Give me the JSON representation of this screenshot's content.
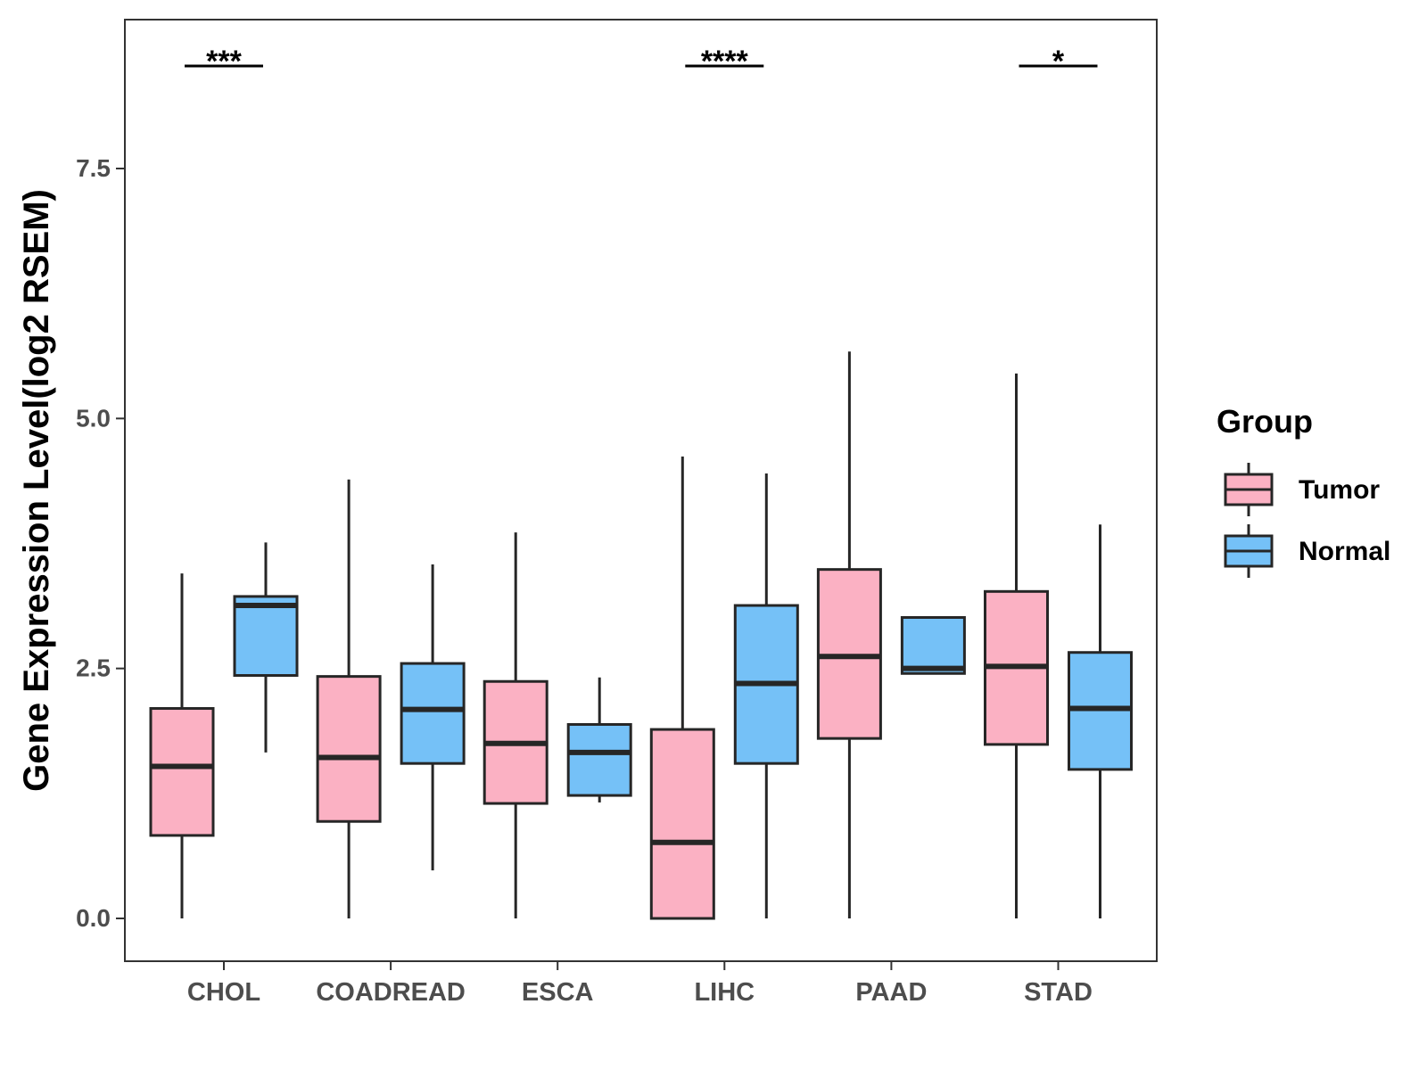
{
  "chart_data": {
    "type": "boxplot",
    "title": "",
    "xlabel": "",
    "ylabel": "Gene Expression Level(log2 RSEM)",
    "ylim": [
      -0.42,
      9.0
    ],
    "yticks": [
      0.0,
      2.5,
      5.0,
      7.5
    ],
    "ytick_labels": [
      "0.0",
      "2.5",
      "5.0",
      "7.5"
    ],
    "categories": [
      "CHOL",
      "COADREAD",
      "ESCA",
      "LIHC",
      "PAAD",
      "STAD"
    ],
    "legend": {
      "title": "Group",
      "placement": "right",
      "entries": [
        {
          "name": "Tumor",
          "color": "#FBB1C3"
        },
        {
          "name": "Normal",
          "color": "#75C1F7"
        }
      ]
    },
    "series": [
      {
        "name": "Tumor",
        "color": "#FBB1C3",
        "boxes": [
          {
            "category": "CHOL",
            "min": 0.0,
            "q1": 0.83,
            "median": 1.52,
            "q3": 2.1,
            "max": 3.45
          },
          {
            "category": "COADREAD",
            "min": 0.0,
            "q1": 0.97,
            "median": 1.61,
            "q3": 2.42,
            "max": 4.39
          },
          {
            "category": "ESCA",
            "min": 0.0,
            "q1": 1.15,
            "median": 1.75,
            "q3": 2.37,
            "max": 3.86
          },
          {
            "category": "LIHC",
            "min": 0.0,
            "q1": 0.0,
            "median": 0.76,
            "q3": 1.89,
            "max": 4.62
          },
          {
            "category": "PAAD",
            "min": 0.0,
            "q1": 1.8,
            "median": 2.62,
            "q3": 3.49,
            "max": 5.67
          },
          {
            "category": "STAD",
            "min": 0.0,
            "q1": 1.74,
            "median": 2.52,
            "q3": 3.27,
            "max": 5.45
          }
        ]
      },
      {
        "name": "Normal",
        "color": "#75C1F7",
        "boxes": [
          {
            "category": "CHOL",
            "min": 1.66,
            "q1": 2.43,
            "median": 3.13,
            "q3": 3.22,
            "max": 3.76
          },
          {
            "category": "COADREAD",
            "min": 0.48,
            "q1": 1.55,
            "median": 2.09,
            "q3": 2.55,
            "max": 3.54
          },
          {
            "category": "ESCA",
            "min": 1.16,
            "q1": 1.23,
            "median": 1.66,
            "q3": 1.94,
            "max": 2.41
          },
          {
            "category": "LIHC",
            "min": 0.0,
            "q1": 1.55,
            "median": 2.35,
            "q3": 3.13,
            "max": 4.45
          },
          {
            "category": "PAAD",
            "min": 2.45,
            "q1": 2.45,
            "median": 2.5,
            "q3": 3.01,
            "max": 3.01
          },
          {
            "category": "STAD",
            "min": 0.0,
            "q1": 1.49,
            "median": 2.1,
            "q3": 2.66,
            "max": 3.94
          }
        ]
      }
    ],
    "significance": [
      {
        "category": "CHOL",
        "label": "***"
      },
      {
        "category": "LIHC",
        "label": "****"
      },
      {
        "category": "STAD",
        "label": "*"
      }
    ]
  }
}
